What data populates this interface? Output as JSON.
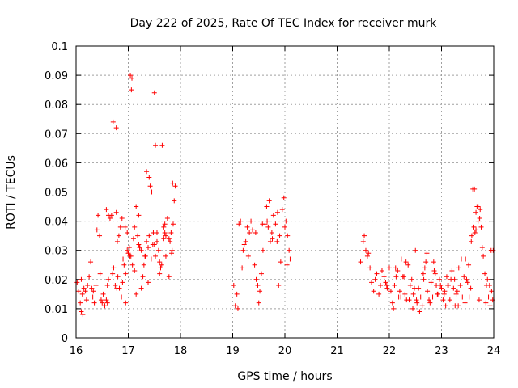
{
  "chart_data": {
    "type": "scatter",
    "title": "Day 222 of 2025, Rate Of TEC Index for receiver murk",
    "xlabel": "GPS time / hours",
    "ylabel": "ROTI / TECUs",
    "xlim": [
      16,
      24
    ],
    "ylim": [
      0,
      0.1
    ],
    "xticks": [
      "16",
      "17",
      "18",
      "19",
      "20",
      "21",
      "22",
      "23",
      "24"
    ],
    "yticks": [
      "0",
      "0.01",
      "0.02",
      "0.03",
      "0.04",
      "0.05",
      "0.06",
      "0.07",
      "0.08",
      "0.09",
      "0.1"
    ],
    "grid": true,
    "marker": "plus",
    "color": "#ff0000",
    "series": [
      {
        "x": [
          16.02,
          16.05,
          16.08,
          16.1,
          16.12,
          16.15,
          16.18,
          16.2,
          16.22,
          16.25,
          16.28,
          16.3,
          16.32,
          16.35,
          16.38,
          16.4,
          16.42,
          16.45,
          16.48,
          16.5,
          16.52,
          16.55,
          16.58,
          16.6,
          16.62,
          16.65,
          16.68,
          16.7,
          16.72,
          16.75,
          16.78,
          16.8,
          16.82,
          16.85,
          16.88,
          16.9,
          16.92,
          16.95,
          16.98,
          17.0,
          17.02,
          17.05,
          17.08,
          17.1,
          17.12,
          17.15,
          17.18,
          17.2,
          17.22,
          17.25,
          17.28,
          17.3,
          17.32,
          17.35,
          17.38,
          17.4,
          17.42,
          17.45,
          17.48,
          17.5,
          17.52,
          17.55,
          17.58,
          17.6,
          17.62,
          17.65,
          17.68,
          17.7,
          17.72,
          17.75,
          17.78,
          17.8,
          17.82,
          17.85,
          17.88,
          16.1,
          16.13,
          16.33,
          16.46,
          16.58,
          16.62,
          16.71,
          16.77,
          16.77,
          16.79,
          16.83,
          16.89,
          16.94,
          16.98,
          17.04,
          17.06,
          17.07,
          17.12,
          17.2,
          17.25,
          17.35,
          17.38,
          17.44,
          17.5,
          17.52,
          17.55,
          17.6,
          17.64,
          17.7,
          17.72,
          17.78,
          17.84,
          17.86,
          17.9,
          16.6,
          16.87,
          17.03,
          17.22,
          17.4,
          17.68,
          17.83,
          16.95,
          17.15,
          17.33,
          17.47
        ],
        "y": [
          0.019,
          0.016,
          0.012,
          0.009,
          0.015,
          0.017,
          0.016,
          0.013,
          0.018,
          0.021,
          0.026,
          0.017,
          0.014,
          0.012,
          0.018,
          0.037,
          0.042,
          0.035,
          0.013,
          0.012,
          0.015,
          0.011,
          0.013,
          0.018,
          0.02,
          0.041,
          0.042,
          0.022,
          0.024,
          0.018,
          0.017,
          0.021,
          0.035,
          0.038,
          0.041,
          0.027,
          0.025,
          0.022,
          0.03,
          0.029,
          0.031,
          0.028,
          0.025,
          0.034,
          0.038,
          0.045,
          0.035,
          0.032,
          0.031,
          0.03,
          0.021,
          0.025,
          0.028,
          0.033,
          0.031,
          0.055,
          0.052,
          0.05,
          0.036,
          0.032,
          0.028,
          0.033,
          0.03,
          0.026,
          0.024,
          0.066,
          0.038,
          0.036,
          0.035,
          0.041,
          0.034,
          0.033,
          0.036,
          0.053,
          0.047,
          0.02,
          0.008,
          0.016,
          0.022,
          0.044,
          0.042,
          0.074,
          0.072,
          0.043,
          0.033,
          0.017,
          0.019,
          0.038,
          0.036,
          0.09,
          0.085,
          0.089,
          0.023,
          0.042,
          0.017,
          0.057,
          0.019,
          0.027,
          0.084,
          0.066,
          0.036,
          0.022,
          0.025,
          0.039,
          0.028,
          0.021,
          0.03,
          0.039,
          0.052,
          0.012,
          0.014,
          0.028,
          0.031,
          0.035,
          0.034,
          0.029,
          0.012,
          0.015,
          0.028,
          0.032
        ]
      },
      {
        "x": [
          19.02,
          19.05,
          19.08,
          19.12,
          19.15,
          19.18,
          19.22,
          19.25,
          19.28,
          19.32,
          19.35,
          19.38,
          19.42,
          19.45,
          19.48,
          19.52,
          19.55,
          19.58,
          19.62,
          19.65,
          19.68,
          19.72,
          19.75,
          19.78,
          19.82,
          19.85,
          19.88,
          19.92,
          19.95,
          19.98,
          20.02,
          20.05,
          20.08,
          20.1,
          19.1,
          19.3,
          19.5,
          19.7,
          19.9,
          20.04,
          19.57,
          19.76,
          20.0,
          19.2,
          19.44,
          19.66,
          19.86
        ],
        "y": [
          0.018,
          0.011,
          0.015,
          0.039,
          0.04,
          0.024,
          0.032,
          0.033,
          0.038,
          0.036,
          0.04,
          0.037,
          0.025,
          0.02,
          0.018,
          0.016,
          0.022,
          0.03,
          0.039,
          0.045,
          0.038,
          0.033,
          0.036,
          0.042,
          0.039,
          0.033,
          0.018,
          0.026,
          0.044,
          0.048,
          0.04,
          0.035,
          0.03,
          0.027,
          0.01,
          0.028,
          0.012,
          0.047,
          0.035,
          0.025,
          0.039,
          0.034,
          0.038,
          0.03,
          0.036,
          0.04,
          0.043
        ]
      },
      {
        "x": [
          21.45,
          21.5,
          21.52,
          21.55,
          21.58,
          21.6,
          21.63,
          21.66,
          21.7,
          21.73,
          21.76,
          21.8,
          21.83,
          21.86,
          21.9,
          21.93,
          21.96,
          22.0,
          22.03,
          22.06,
          22.1,
          22.13,
          22.16,
          22.2,
          22.23,
          22.26,
          22.3,
          22.33,
          22.36,
          22.4,
          22.43,
          22.46,
          22.5,
          22.53,
          22.56,
          22.6,
          22.63,
          22.66,
          22.7,
          22.73,
          22.76,
          22.8,
          22.83,
          22.86,
          22.9,
          22.93,
          22.96,
          23.0,
          23.03,
          23.06,
          23.1,
          23.13,
          23.16,
          23.2,
          23.23,
          23.26,
          23.3,
          23.33,
          23.36,
          23.4,
          23.43,
          23.46,
          23.5,
          23.53,
          23.56,
          23.6,
          23.63,
          23.66,
          23.7,
          23.73,
          23.76,
          23.8,
          23.83,
          23.86,
          23.9,
          23.93,
          23.96,
          23.99,
          22.08,
          22.18,
          22.28,
          22.38,
          22.48,
          22.58,
          22.68,
          22.78,
          22.88,
          22.98,
          23.08,
          23.18,
          23.28,
          23.38,
          23.48,
          23.58,
          23.68,
          23.78,
          23.88,
          23.98,
          22.12,
          22.32,
          22.52,
          22.72,
          22.92,
          23.12,
          23.32,
          23.52,
          23.72,
          23.92,
          23.62,
          23.66,
          23.7,
          23.74,
          23.57,
          23.64,
          23.85,
          23.95,
          21.95,
          22.22,
          22.45,
          22.65,
          22.85,
          23.05,
          23.25,
          23.45
        ],
        "y": [
          0.026,
          0.033,
          0.035,
          0.03,
          0.028,
          0.029,
          0.024,
          0.019,
          0.016,
          0.02,
          0.022,
          0.015,
          0.018,
          0.023,
          0.021,
          0.019,
          0.017,
          0.024,
          0.016,
          0.012,
          0.018,
          0.021,
          0.023,
          0.016,
          0.027,
          0.021,
          0.015,
          0.013,
          0.025,
          0.018,
          0.02,
          0.015,
          0.03,
          0.012,
          0.017,
          0.014,
          0.011,
          0.02,
          0.026,
          0.016,
          0.013,
          0.019,
          0.014,
          0.023,
          0.018,
          0.015,
          0.02,
          0.017,
          0.013,
          0.016,
          0.021,
          0.018,
          0.013,
          0.023,
          0.017,
          0.011,
          0.016,
          0.024,
          0.018,
          0.014,
          0.021,
          0.027,
          0.019,
          0.014,
          0.017,
          0.051,
          0.051,
          0.043,
          0.045,
          0.041,
          0.038,
          0.028,
          0.022,
          0.018,
          0.014,
          0.011,
          0.016,
          0.03,
          0.01,
          0.014,
          0.021,
          0.013,
          0.017,
          0.009,
          0.024,
          0.012,
          0.022,
          0.018,
          0.011,
          0.02,
          0.015,
          0.027,
          0.02,
          0.035,
          0.045,
          0.031,
          0.02,
          0.013,
          0.024,
          0.026,
          0.013,
          0.029,
          0.015,
          0.018,
          0.011,
          0.025,
          0.013,
          0.018,
          0.038,
          0.037,
          0.04,
          0.044,
          0.033,
          0.036,
          0.012,
          0.03,
          0.018,
          0.014,
          0.01,
          0.022,
          0.026,
          0.015,
          0.02,
          0.012
        ]
      }
    ]
  }
}
